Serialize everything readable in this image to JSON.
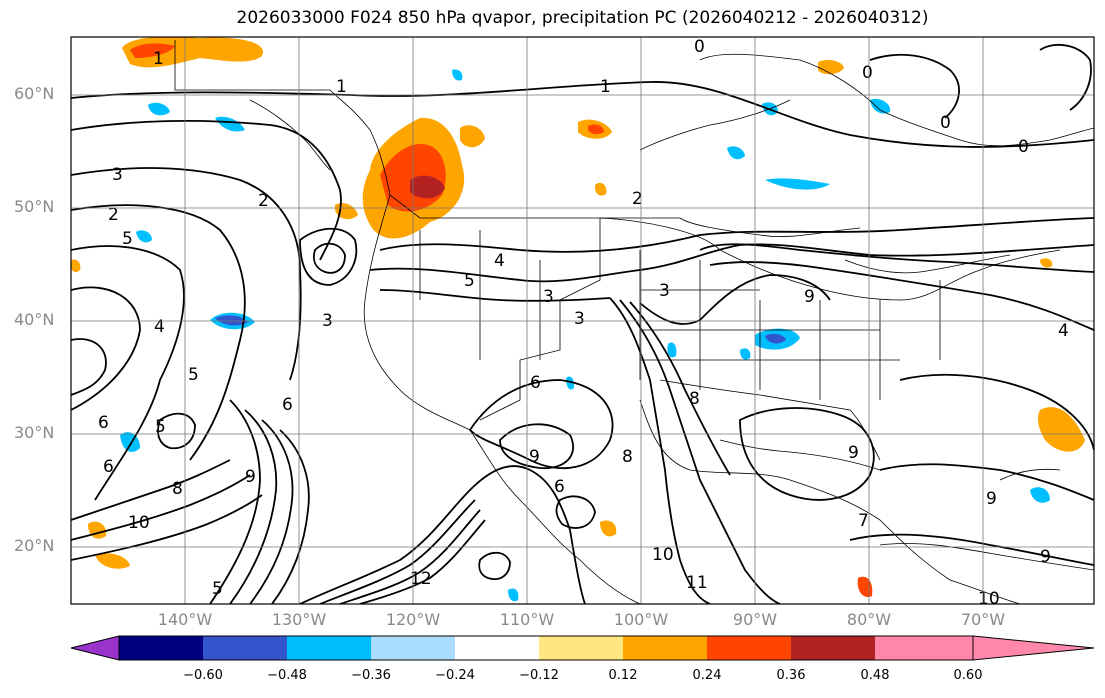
{
  "title": "2026033000 F024 850 hPa qvapor, precipitation PC (2026040212 - 2026040312)",
  "lat_labels": [
    "60°N",
    "50°N",
    "40°N",
    "30°N",
    "20°N"
  ],
  "lon_labels": [
    "140°W",
    "130°W",
    "120°W",
    "110°W",
    "100°W",
    "90°W",
    "80°W",
    "70°W"
  ],
  "colorbar": {
    "ticks": [
      "−0.60",
      "−0.48",
      "−0.36",
      "−0.24",
      "−0.12",
      "0.12",
      "0.24",
      "0.36",
      "0.48",
      "0.60"
    ],
    "colors": [
      "#9933cc",
      "#000080",
      "#3355cc",
      "#00bfff",
      "#aadcff",
      "#ffffff",
      "#ffe680",
      "#ffa500",
      "#ff4500",
      "#b22222",
      "#ff88aa"
    ]
  },
  "contour_labels": [
    "1",
    "1",
    "1",
    "0",
    "0",
    "0",
    "0",
    "2",
    "2",
    "2",
    "3",
    "3",
    "3",
    "3",
    "3",
    "4",
    "4",
    "4",
    "5",
    "5",
    "5",
    "5",
    "5",
    "6",
    "6",
    "6",
    "6",
    "6",
    "7",
    "8",
    "8",
    "8",
    "9",
    "9",
    "9",
    "9",
    "9",
    "9",
    "10",
    "10",
    "10",
    "11",
    "12"
  ]
}
